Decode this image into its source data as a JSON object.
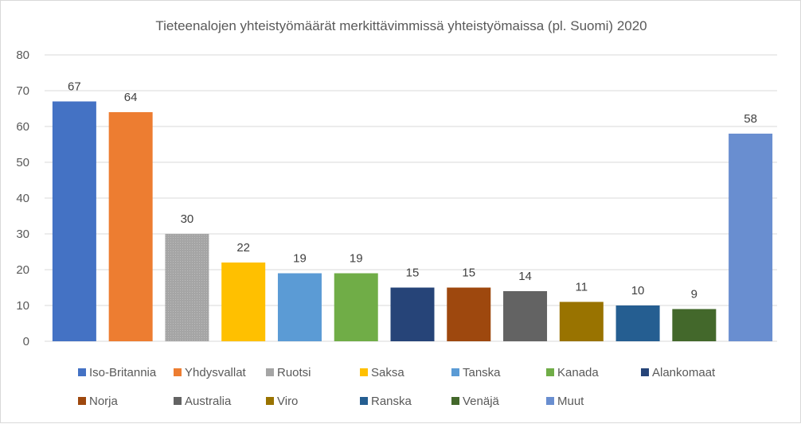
{
  "chart_data": {
    "type": "bar",
    "title": "Tieteenalojen yhteistyömäärät merkittävimmissä yhteistyömaissa (pl. Suomi) 2020",
    "xlabel": "",
    "ylabel": "",
    "ylim": [
      0,
      80
    ],
    "yticks": [
      "0",
      "10",
      "20",
      "30",
      "40",
      "50",
      "60",
      "70",
      "80"
    ],
    "grid": true,
    "legend_position": "bottom",
    "categories": [
      "Iso-Britannia",
      "Yhdysvallat",
      "Ruotsi",
      "Saksa",
      "Tanska",
      "Kanada",
      "Alankomaat",
      "Norja",
      "Australia",
      "Viro",
      "Ranska",
      "Venäjä",
      "Muut"
    ],
    "values": [
      67,
      64,
      30,
      22,
      19,
      19,
      15,
      15,
      14,
      11,
      10,
      9,
      58
    ],
    "data_labels": [
      "67",
      "64",
      "30",
      "22",
      "19",
      "19",
      "15",
      "15",
      "14",
      "11",
      "10",
      "9",
      "58"
    ],
    "colors": [
      "#4472c4",
      "#ed7d31",
      "#a5a5a5",
      "#ffc000",
      "#5b9bd5",
      "#70ad47",
      "#264478",
      "#9e480e",
      "#636363",
      "#997300",
      "#255e91",
      "#43682b",
      "#698ed0"
    ]
  }
}
